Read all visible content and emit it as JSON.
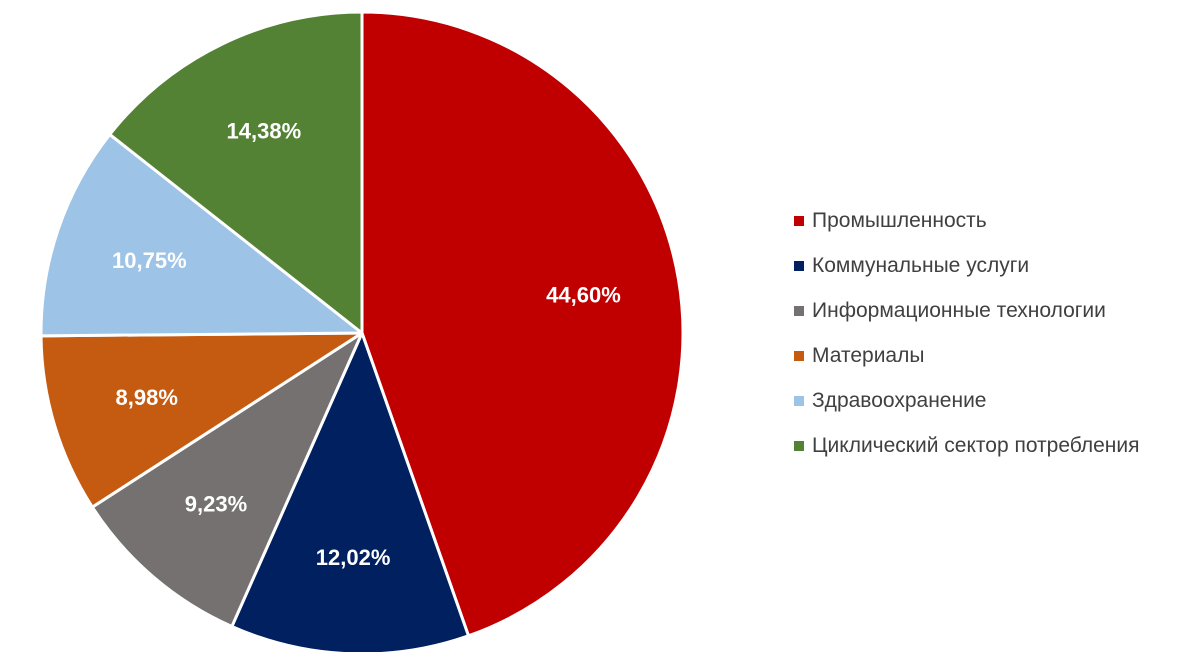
{
  "chart_data": {
    "type": "pie",
    "start_angle_deg": 0,
    "direction": "clockwise",
    "legend_position": "right",
    "slices": [
      {
        "name": "Промышленность",
        "value": 44.6,
        "label": "44,60%",
        "color": "#C00000"
      },
      {
        "name": "Коммунальные услуги",
        "value": 12.02,
        "label": "12,02%",
        "color": "#002060"
      },
      {
        "name": "Информационные технологии",
        "value": 9.23,
        "label": "9,23%",
        "color": "#767171"
      },
      {
        "name": "Материалы",
        "value": 8.98,
        "label": "8,98%",
        "color": "#C55A11"
      },
      {
        "name": "Здравоохранение",
        "value": 10.75,
        "label": "10,75%",
        "color": "#9DC3E6"
      },
      {
        "name": "Циклический сектор потребления",
        "value": 14.38,
        "label": "14,38%",
        "color": "#548235"
      }
    ]
  }
}
